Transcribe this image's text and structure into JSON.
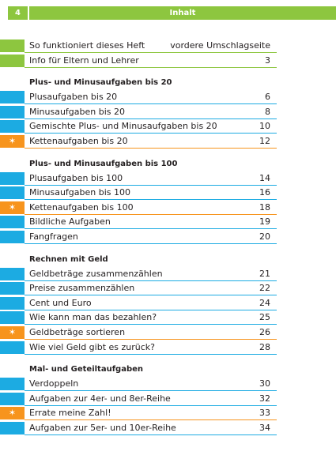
{
  "header": {
    "page_number": "4",
    "title": "Inhalt"
  },
  "intro_rows": [
    {
      "text": "So funktioniert dieses Heft",
      "page": "vordere Umschlagseite",
      "style": "green"
    },
    {
      "text": "Info für Eltern und Lehrer",
      "page": "3",
      "style": "green"
    }
  ],
  "sections": [
    {
      "title": "Plus- und Minusaufgaben bis 20",
      "rows": [
        {
          "text": "Plusaufgaben bis 20",
          "page": "6",
          "style": "blue"
        },
        {
          "text": "Minusaufgaben bis 20",
          "page": "8",
          "style": "blue"
        },
        {
          "text": "Gemischte Plus- und Minusaufgaben bis 20",
          "page": "10",
          "style": "blue"
        },
        {
          "text": "Kettenaufgaben bis 20",
          "page": "12",
          "style": "orange"
        }
      ]
    },
    {
      "title": "Plus- und Minusaufgaben bis 100",
      "rows": [
        {
          "text": "Plusaufgaben bis 100",
          "page": "14",
          "style": "blue"
        },
        {
          "text": "Minusaufgaben bis 100",
          "page": "16",
          "style": "blue"
        },
        {
          "text": "Kettenaufgaben bis 100",
          "page": "18",
          "style": "orange"
        },
        {
          "text": "Bildliche Aufgaben",
          "page": "19",
          "style": "blue"
        },
        {
          "text": "Fangfragen",
          "page": "20",
          "style": "blue"
        }
      ]
    },
    {
      "title": "Rechnen mit Geld",
      "rows": [
        {
          "text": "Geldbeträge zusammenzählen",
          "page": "21",
          "style": "blue"
        },
        {
          "text": "Preise zusammenzählen",
          "page": "22",
          "style": "blue"
        },
        {
          "text": "Cent und Euro",
          "page": "24",
          "style": "blue"
        },
        {
          "text": "Wie kann man das bezahlen?",
          "page": "25",
          "style": "blue"
        },
        {
          "text": "Geldbeträge sortieren",
          "page": "26",
          "style": "orange"
        },
        {
          "text": "Wie viel Geld gibt es zurück?",
          "page": "28",
          "style": "blue"
        }
      ]
    },
    {
      "title": "Mal- und Geteiltaufgaben",
      "rows": [
        {
          "text": "Verdoppeln",
          "page": "30",
          "style": "blue"
        },
        {
          "text": "Aufgaben zur 4er- und 8er-Reihe",
          "page": "32",
          "style": "blue"
        },
        {
          "text": "Errate meine Zahl!",
          "page": "33",
          "style": "orange"
        },
        {
          "text": "Aufgaben zur 5er- und 10er-Reihe",
          "page": "34",
          "style": "blue"
        }
      ]
    }
  ],
  "colors": {
    "green": "#8dc63f",
    "blue": "#1cabe2",
    "orange": "#f7941d"
  }
}
